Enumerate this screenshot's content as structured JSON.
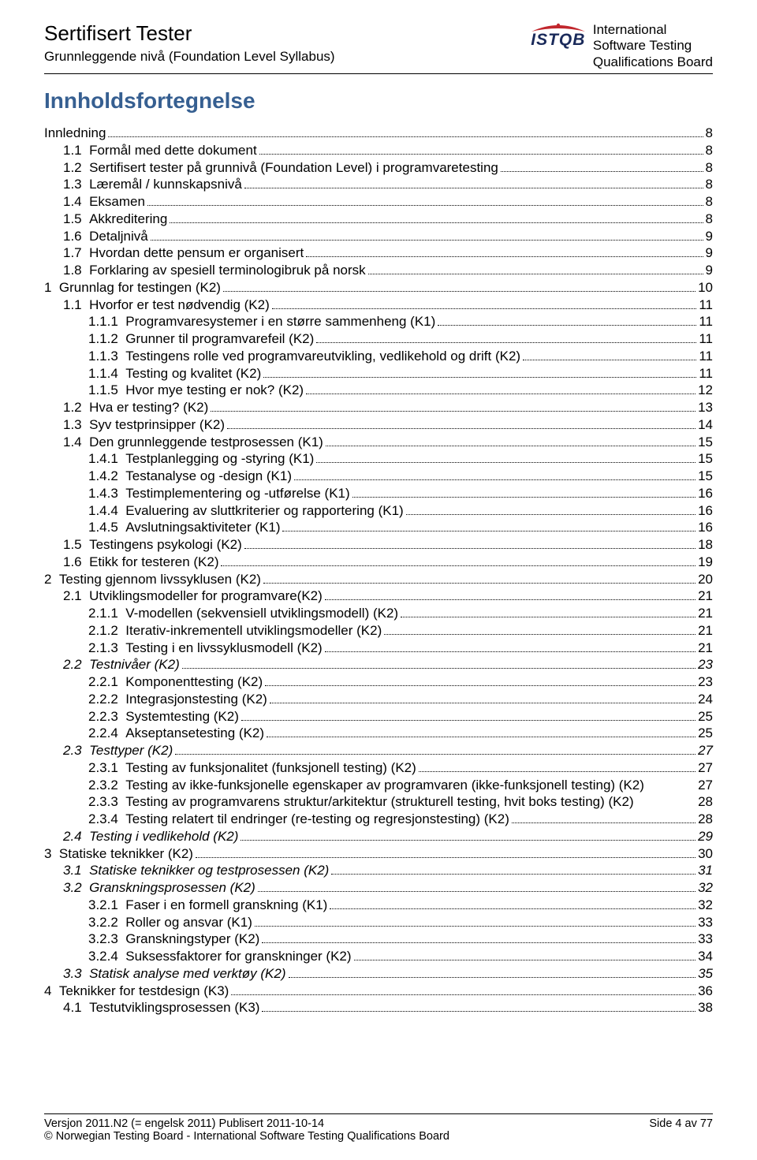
{
  "header": {
    "title": "Sertifisert Tester",
    "subtitle": "Grunnleggende nivå (Foundation Level Syllabus)",
    "logo_text": "ISTQB",
    "board_line1": "International",
    "board_line2": "Software Testing",
    "board_line3": "Qualifications Board"
  },
  "toc_title": "Innholdsfortegnelse",
  "entries": [
    {
      "level": 0,
      "num": "",
      "label": "Innledning",
      "page": "8",
      "italic": false,
      "dots": true
    },
    {
      "level": 1,
      "num": "1.1",
      "label": "Formål med dette dokument",
      "page": "8",
      "italic": false,
      "dots": true
    },
    {
      "level": 1,
      "num": "1.2",
      "label": "Sertifisert tester på grunnivå (Foundation Level) i programvaretesting",
      "page": "8",
      "italic": false,
      "dots": true
    },
    {
      "level": 1,
      "num": "1.3",
      "label": "Læremål / kunnskapsnivå",
      "page": "8",
      "italic": false,
      "dots": true
    },
    {
      "level": 1,
      "num": "1.4",
      "label": "Eksamen",
      "page": "8",
      "italic": false,
      "dots": true
    },
    {
      "level": 1,
      "num": "1.5",
      "label": "Akkreditering",
      "page": "8",
      "italic": false,
      "dots": true
    },
    {
      "level": 1,
      "num": "1.6",
      "label": "Detaljnivå",
      "page": "9",
      "italic": false,
      "dots": true
    },
    {
      "level": 1,
      "num": "1.7",
      "label": "Hvordan dette pensum er organisert",
      "page": "9",
      "italic": false,
      "dots": true
    },
    {
      "level": 1,
      "num": "1.8",
      "label": "Forklaring av spesiell terminologibruk på norsk",
      "page": "9",
      "italic": false,
      "dots": true
    },
    {
      "level": 0,
      "num": "1",
      "label": "Grunnlag for testingen (K2)",
      "page": "10",
      "italic": false,
      "dots": true
    },
    {
      "level": 1,
      "num": "1.1",
      "label": "Hvorfor er test nødvendig (K2)",
      "page": "11",
      "italic": false,
      "dots": true
    },
    {
      "level": 2,
      "num": "1.1.1",
      "label": "Programvaresystemer i en større sammenheng (K1)",
      "page": "11",
      "italic": false,
      "dots": true
    },
    {
      "level": 2,
      "num": "1.1.2",
      "label": "Grunner til programvarefeil (K2)",
      "page": "11",
      "italic": false,
      "dots": true
    },
    {
      "level": 2,
      "num": "1.1.3",
      "label": "Testingens rolle ved programvareutvikling, vedlikehold og drift (K2)",
      "page": "11",
      "italic": false,
      "dots": true
    },
    {
      "level": 2,
      "num": "1.1.4",
      "label": "Testing og kvalitet (K2)",
      "page": "11",
      "italic": false,
      "dots": true
    },
    {
      "level": 2,
      "num": "1.1.5",
      "label": "Hvor mye testing er nok? (K2)",
      "page": "12",
      "italic": false,
      "dots": true
    },
    {
      "level": 1,
      "num": "1.2",
      "label": "Hva er testing? (K2)",
      "page": "13",
      "italic": false,
      "dots": true
    },
    {
      "level": 1,
      "num": "1.3",
      "label": "Syv testprinsipper (K2)",
      "page": "14",
      "italic": false,
      "dots": true
    },
    {
      "level": 1,
      "num": "1.4",
      "label": "Den grunnleggende testprosessen (K1)",
      "page": "15",
      "italic": false,
      "dots": true
    },
    {
      "level": 2,
      "num": "1.4.1",
      "label": "Testplanlegging og -styring (K1)",
      "page": "15",
      "italic": false,
      "dots": true
    },
    {
      "level": 2,
      "num": "1.4.2",
      "label": "Testanalyse og -design (K1)",
      "page": "15",
      "italic": false,
      "dots": true
    },
    {
      "level": 2,
      "num": "1.4.3",
      "label": "Testimplementering og -utførelse (K1)",
      "page": "16",
      "italic": false,
      "dots": true
    },
    {
      "level": 2,
      "num": "1.4.4",
      "label": "Evaluering av sluttkriterier og rapportering (K1)",
      "page": "16",
      "italic": false,
      "dots": true
    },
    {
      "level": 2,
      "num": "1.4.5",
      "label": "Avslutningsaktiviteter (K1)",
      "page": "16",
      "italic": false,
      "dots": true
    },
    {
      "level": 1,
      "num": "1.5",
      "label": "Testingens psykologi (K2)",
      "page": "18",
      "italic": false,
      "dots": true
    },
    {
      "level": 1,
      "num": "1.6",
      "label": "Etikk for testeren (K2)",
      "page": "19",
      "italic": false,
      "dots": true
    },
    {
      "level": 0,
      "num": "2",
      "label": "Testing gjennom livssyklusen (K2)",
      "page": "20",
      "italic": false,
      "dots": true
    },
    {
      "level": 1,
      "num": "2.1",
      "label": "Utviklingsmodeller for programvare(K2)",
      "page": "21",
      "italic": false,
      "dots": true
    },
    {
      "level": 2,
      "num": "2.1.1",
      "label": "V-modellen (sekvensiell utviklingsmodell) (K2)",
      "page": "21",
      "italic": false,
      "dots": true
    },
    {
      "level": 2,
      "num": "2.1.2",
      "label": "Iterativ-inkrementell utviklingsmodeller (K2)",
      "page": "21",
      "italic": false,
      "dots": true
    },
    {
      "level": 2,
      "num": "2.1.3",
      "label": "Testing i en livssyklusmodell (K2)",
      "page": "21",
      "italic": false,
      "dots": true
    },
    {
      "level": 1,
      "num": "2.2",
      "label": "Testnivåer (K2)",
      "page": "23",
      "italic": true,
      "dots": true
    },
    {
      "level": 2,
      "num": "2.2.1",
      "label": "Komponenttesting (K2)",
      "page": "23",
      "italic": false,
      "dots": true
    },
    {
      "level": 2,
      "num": "2.2.2",
      "label": "Integrasjonstesting (K2)",
      "page": "24",
      "italic": false,
      "dots": true
    },
    {
      "level": 2,
      "num": "2.2.3",
      "label": "Systemtesting (K2)",
      "page": "25",
      "italic": false,
      "dots": true
    },
    {
      "level": 2,
      "num": "2.2.4",
      "label": "Akseptansetesting (K2)",
      "page": "25",
      "italic": false,
      "dots": true
    },
    {
      "level": 1,
      "num": "2.3",
      "label": "Testtyper (K2)",
      "page": "27",
      "italic": true,
      "dots": true
    },
    {
      "level": 2,
      "num": "2.3.1",
      "label": "Testing av funksjonalitet (funksjonell testing) (K2)",
      "page": "27",
      "italic": false,
      "dots": true
    },
    {
      "level": 2,
      "num": "2.3.2",
      "label": "Testing av ikke-funksjonelle egenskaper av programvaren (ikke-funksjonell testing) (K2)",
      "page": "27",
      "italic": false,
      "dots": false
    },
    {
      "level": 2,
      "num": "2.3.3",
      "label": "Testing av programvarens struktur/arkitektur (strukturell testing, hvit boks testing) (K2)",
      "page": " 28",
      "italic": false,
      "dots": false
    },
    {
      "level": 2,
      "num": "2.3.4",
      "label": "Testing relatert til endringer (re-testing og regresjonstesting) (K2)",
      "page": "28",
      "italic": false,
      "dots": true
    },
    {
      "level": 1,
      "num": "2.4",
      "label": "Testing i vedlikehold (K2)",
      "page": "29",
      "italic": true,
      "dots": true
    },
    {
      "level": 0,
      "num": "3",
      "label": "Statiske teknikker (K2)",
      "page": "30",
      "italic": false,
      "dots": true
    },
    {
      "level": 1,
      "num": "3.1",
      "label": "Statiske teknikker  og testprosessen (K2)",
      "page": "31",
      "italic": true,
      "dots": true
    },
    {
      "level": 1,
      "num": "3.2",
      "label": "Granskningsprosessen (K2)",
      "page": "32",
      "italic": true,
      "dots": true
    },
    {
      "level": 2,
      "num": "3.2.1",
      "label": "Faser i en formell granskning (K1)",
      "page": "32",
      "italic": false,
      "dots": true
    },
    {
      "level": 2,
      "num": "3.2.2",
      "label": "Roller og ansvar (K1)",
      "page": "33",
      "italic": false,
      "dots": true
    },
    {
      "level": 2,
      "num": "3.2.3",
      "label": "Granskningstyper (K2)",
      "page": "33",
      "italic": false,
      "dots": true
    },
    {
      "level": 2,
      "num": "3.2.4",
      "label": "Suksessfaktorer for granskninger (K2)",
      "page": "34",
      "italic": false,
      "dots": true
    },
    {
      "level": 1,
      "num": "3.3",
      "label": "Statisk analyse med verktøy (K2)",
      "page": "35",
      "italic": true,
      "dots": true
    },
    {
      "level": 0,
      "num": "4",
      "label": "Teknikker for testdesign (K3)",
      "page": "36",
      "italic": false,
      "dots": true
    },
    {
      "level": 1,
      "num": "4.1",
      "label": "Testutviklingsprosessen (K3)",
      "page": "38",
      "italic": false,
      "dots": true
    }
  ],
  "footer": {
    "left": "Versjon 2011.N2 (= engelsk 2011) Publisert 2011-10-14",
    "right": "Side 4 av 77",
    "line2": "©  Norwegian Testing Board - International Software Testing Qualifications Board"
  }
}
